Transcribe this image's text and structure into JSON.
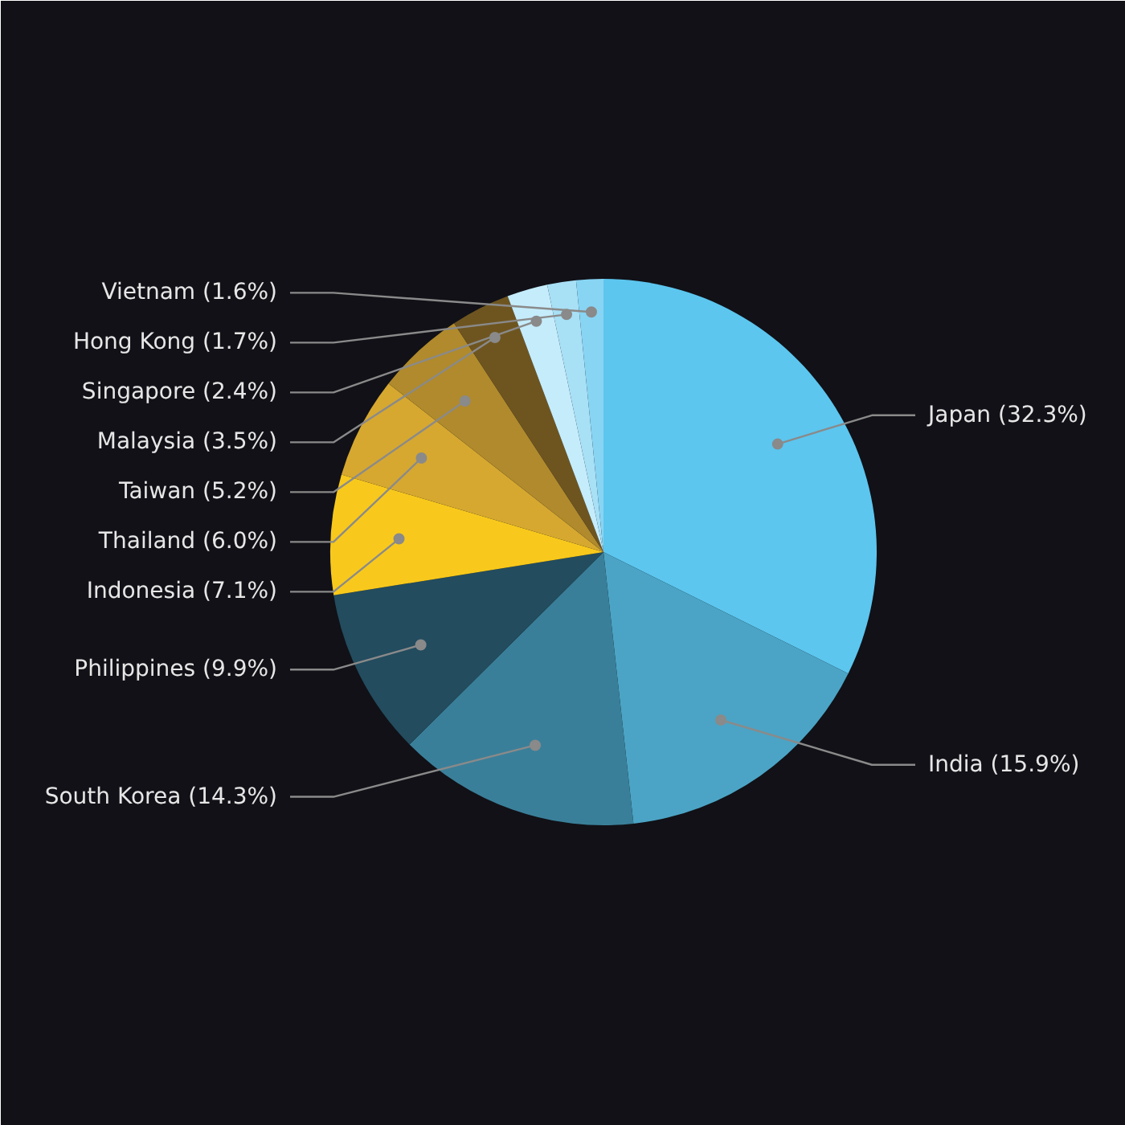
{
  "chart_data": {
    "type": "pie",
    "categories": [
      "Japan (32.3%)",
      "India (15.9%)",
      "South Korea (14.3%)",
      "Philippines (9.9%)",
      "Indonesia (7.1%)",
      "Thailand (6.0%)",
      "Taiwan (5.2%)",
      "Malaysia (3.5%)",
      "Singapore (2.4%)",
      "Hong Kong (1.7%)",
      "Vietnam (1.6%)"
    ],
    "values": [
      32.3,
      15.9,
      14.3,
      9.9,
      7.1,
      6.0,
      5.2,
      3.5,
      2.4,
      1.7,
      1.6
    ],
    "colors": [
      "#5cc6ef",
      "#4ba4c5",
      "#3a7f99",
      "#234c5e",
      "#f8c91c",
      "#d6a830",
      "#b08a2c",
      "#6e5520",
      "#c5ecfb",
      "#a8e0f6",
      "#88d4f3"
    ]
  }
}
